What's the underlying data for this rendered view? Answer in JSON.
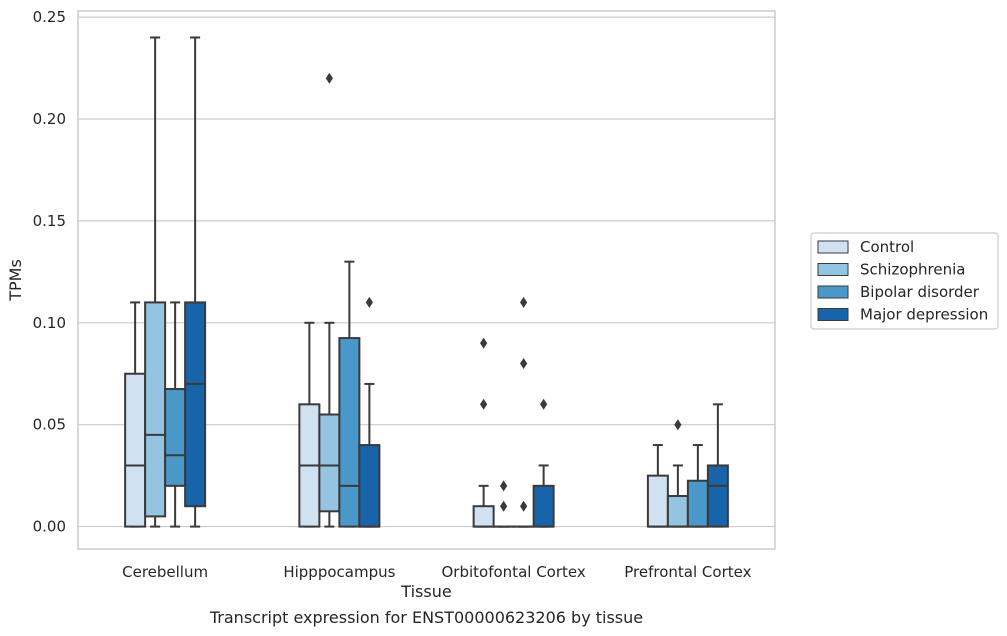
{
  "chart_data": {
    "type": "box",
    "title": "",
    "caption": "Transcript expression for ENST00000623206 by tissue",
    "xlabel": "Tissue",
    "ylabel": "TPMs",
    "ylim": [
      -0.011,
      0.253
    ],
    "yticks": [
      0.0,
      0.05,
      0.1,
      0.15,
      0.2,
      0.25
    ],
    "ytick_labels": [
      "0.00",
      "0.05",
      "0.10",
      "0.15",
      "0.20",
      "0.25"
    ],
    "grid": true,
    "legend": {
      "placement": "right",
      "entries": [
        "Control",
        "Schizophrenia",
        "Bipolar disorder",
        "Major depression"
      ]
    },
    "categories": [
      "Cerebellum",
      "Hipppocampus",
      "Orbitofontal Cortex",
      "Prefrontal Cortex"
    ],
    "series": [
      {
        "name": "Control",
        "color": "#d0e1f2",
        "boxes": [
          {
            "q1": 0.0,
            "median": 0.03,
            "q3": 0.075,
            "whisker_low": 0.0,
            "whisker_high": 0.11,
            "outliers": []
          },
          {
            "q1": 0.0,
            "median": 0.03,
            "q3": 0.06,
            "whisker_low": 0.0,
            "whisker_high": 0.1,
            "outliers": []
          },
          {
            "q1": 0.0,
            "median": 0.0,
            "q3": 0.01,
            "whisker_low": 0.0,
            "whisker_high": 0.02,
            "outliers": [
              0.06,
              0.09
            ]
          },
          {
            "q1": 0.0,
            "median": 0.0,
            "q3": 0.025,
            "whisker_low": 0.0,
            "whisker_high": 0.04,
            "outliers": []
          }
        ]
      },
      {
        "name": "Schizophrenia",
        "color": "#94c4df",
        "boxes": [
          {
            "q1": 0.005,
            "median": 0.045,
            "q3": 0.11,
            "whisker_low": 0.0,
            "whisker_high": 0.24,
            "outliers": []
          },
          {
            "q1": 0.0075,
            "median": 0.03,
            "q3": 0.055,
            "whisker_low": 0.0,
            "whisker_high": 0.1,
            "outliers": [
              0.22
            ]
          },
          {
            "q1": 0.0,
            "median": 0.0,
            "q3": 0.0,
            "whisker_low": 0.0,
            "whisker_high": 0.0,
            "outliers": [
              0.01,
              0.02
            ]
          },
          {
            "q1": 0.0,
            "median": 0.0,
            "q3": 0.015,
            "whisker_low": 0.0,
            "whisker_high": 0.03,
            "outliers": [
              0.05
            ]
          }
        ]
      },
      {
        "name": "Bipolar disorder",
        "color": "#4a98c9",
        "boxes": [
          {
            "q1": 0.02,
            "median": 0.035,
            "q3": 0.0675,
            "whisker_low": 0.0,
            "whisker_high": 0.11,
            "outliers": []
          },
          {
            "q1": 0.0,
            "median": 0.02,
            "q3": 0.0925,
            "whisker_low": 0.0,
            "whisker_high": 0.13,
            "outliers": []
          },
          {
            "q1": 0.0,
            "median": 0.0,
            "q3": 0.0,
            "whisker_low": 0.0,
            "whisker_high": 0.0,
            "outliers": [
              0.01,
              0.08,
              0.11
            ]
          },
          {
            "q1": 0.0,
            "median": 0.0,
            "q3": 0.0225,
            "whisker_low": 0.0,
            "whisker_high": 0.04,
            "outliers": []
          }
        ]
      },
      {
        "name": "Major depression",
        "color": "#1764ab",
        "boxes": [
          {
            "q1": 0.01,
            "median": 0.07,
            "q3": 0.11,
            "whisker_low": 0.0,
            "whisker_high": 0.24,
            "outliers": []
          },
          {
            "q1": 0.0,
            "median": 0.0,
            "q3": 0.04,
            "whisker_low": 0.0,
            "whisker_high": 0.07,
            "outliers": [
              0.11
            ]
          },
          {
            "q1": 0.0,
            "median": 0.0,
            "q3": 0.02,
            "whisker_low": 0.0,
            "whisker_high": 0.03,
            "outliers": [
              0.06
            ]
          },
          {
            "q1": 0.0,
            "median": 0.02,
            "q3": 0.03,
            "whisker_low": 0.0,
            "whisker_high": 0.06,
            "outliers": []
          }
        ]
      }
    ]
  }
}
